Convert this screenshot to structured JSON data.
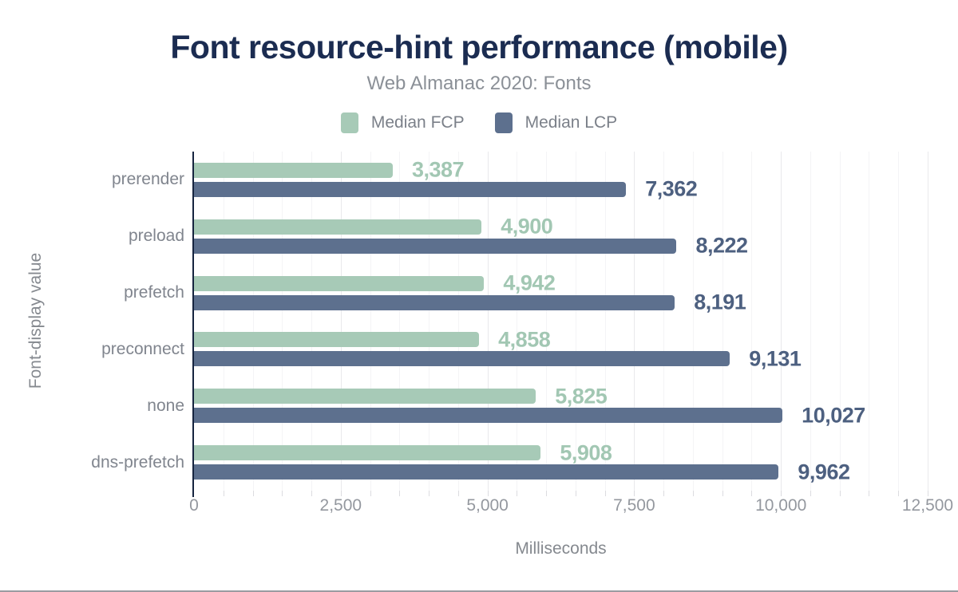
{
  "chart_data": {
    "type": "bar",
    "orientation": "horizontal",
    "title": "Font resource-hint performance (mobile)",
    "subtitle": "Web Almanac 2020: Fonts",
    "xlabel": "Milliseconds",
    "ylabel": "Font-display value",
    "categories": [
      "prerender",
      "preload",
      "prefetch",
      "preconnect",
      "none",
      "dns-prefetch"
    ],
    "series": [
      {
        "name": "Median FCP",
        "color": "#a7cab7",
        "label_color": "#a2c7b3",
        "values": [
          3387,
          4900,
          4942,
          4858,
          5825,
          5908
        ],
        "value_labels": [
          "3,387",
          "4,900",
          "4,942",
          "4,858",
          "5,825",
          "5,908"
        ]
      },
      {
        "name": "Median LCP",
        "color": "#5d708e",
        "label_color": "#4d6080",
        "values": [
          7362,
          8222,
          8191,
          9131,
          10027,
          9962
        ],
        "value_labels": [
          "7,362",
          "8,222",
          "8,191",
          "9,131",
          "10,027",
          "9,962"
        ]
      }
    ],
    "xlim": [
      0,
      12500
    ],
    "x_tick_values": [
      0,
      2500,
      5000,
      7500,
      10000,
      12500
    ],
    "x_tick_labels": [
      "0",
      "2,500",
      "5,000",
      "7,500",
      "10,000",
      "12,500"
    ],
    "minor_grid_step": 500,
    "major_grid_step": 2500,
    "grid": true,
    "legend_position": "top"
  },
  "colors": {
    "title": "#1b2c51",
    "subtitle": "#8b9097",
    "axis_line": "#16243f",
    "grid_minor": "#f4f4f6",
    "grid_major": "#e9e9ec"
  }
}
